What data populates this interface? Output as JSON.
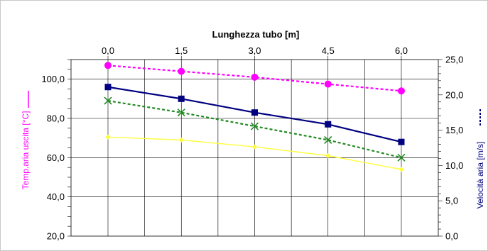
{
  "chart_data": {
    "type": "line",
    "title": "Lunghezza tubo [m]",
    "xlabel": "Lunghezza tubo [m]",
    "x_axis_position": "top",
    "categories": [
      "0,0",
      "1,5",
      "3,0",
      "4,5",
      "6,0"
    ],
    "x": [
      0,
      1.5,
      3.0,
      4.5,
      6.0
    ],
    "ylabel_left": "Temp.aria uscita [°C]",
    "ylabel_right": "Velocità aria [m/s]",
    "ylim_left": [
      20,
      110
    ],
    "ylim_right": [
      0,
      25
    ],
    "yticks_left": [
      "20,0",
      "40,0",
      "60,0",
      "80,0",
      "100,0"
    ],
    "yticks_right": [
      "0,0",
      "5,0",
      "10,0",
      "15,0",
      "20,0",
      "25,0"
    ],
    "grid": true,
    "series": [
      {
        "axis": "left",
        "values": [
          107,
          104,
          101,
          97.5,
          94
        ],
        "color": "#ff00ff",
        "marker": "circle",
        "dash": true
      },
      {
        "axis": "left",
        "values": [
          96,
          90,
          83,
          77,
          68
        ],
        "color": "#000080",
        "marker": "square",
        "dash": false
      },
      {
        "axis": "left",
        "values": [
          89,
          83,
          76,
          69,
          60
        ],
        "color": "#228b22",
        "marker": "x",
        "dash": true
      },
      {
        "axis": "left",
        "values": [
          70.5,
          69,
          65.5,
          61,
          54
        ],
        "color": "#ffff33",
        "marker": "diamond",
        "dash": false
      }
    ]
  }
}
